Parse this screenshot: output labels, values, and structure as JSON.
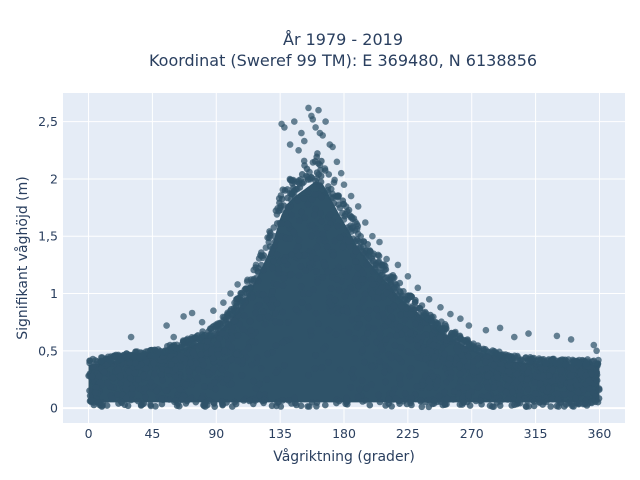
{
  "chart_data": {
    "type": "scatter",
    "title_line1": "År 1979 - 2019",
    "title_line2": "Koordinat (Sweref 99 TM): E 369480, N 6138856",
    "xlabel": "Vågriktning (grader)",
    "ylabel": "Signifikant våghöjd (m)",
    "xlim": [
      -18,
      378
    ],
    "ylim": [
      -0.13,
      2.75
    ],
    "x_ticks": [
      0,
      45,
      90,
      135,
      180,
      225,
      270,
      315,
      360
    ],
    "x_tick_labels": [
      "0",
      "45",
      "90",
      "135",
      "180",
      "225",
      "270",
      "315",
      "360"
    ],
    "y_ticks": [
      0,
      0.5,
      1,
      1.5,
      2,
      2.5
    ],
    "y_tick_labels": [
      "0",
      "0,5",
      "1",
      "1,5",
      "2",
      "2,5"
    ],
    "grid": true,
    "marker_color": "#2f5369",
    "plot_background": "#e5ecf6",
    "upper_envelope": {
      "x": [
        0,
        15,
        30,
        45,
        60,
        75,
        90,
        100,
        110,
        120,
        130,
        135,
        140,
        145,
        150,
        155,
        160,
        165,
        170,
        175,
        180,
        185,
        190,
        200,
        210,
        220,
        230,
        240,
        250,
        260,
        270,
        280,
        290,
        300,
        315,
        330,
        345,
        360
      ],
      "y": [
        0.42,
        0.45,
        0.48,
        0.5,
        0.55,
        0.62,
        0.72,
        0.85,
        1.05,
        1.3,
        1.6,
        1.85,
        1.98,
        2.05,
        2.1,
        2.15,
        2.2,
        2.18,
        2.05,
        1.92,
        1.8,
        1.68,
        1.55,
        1.38,
        1.22,
        1.06,
        0.95,
        0.82,
        0.73,
        0.64,
        0.57,
        0.52,
        0.48,
        0.45,
        0.43,
        0.42,
        0.42,
        0.42
      ]
    },
    "outlier_points": {
      "x": [
        136,
        138,
        142,
        145,
        148,
        150,
        152,
        155,
        157,
        158,
        160,
        162,
        163,
        165,
        167,
        170,
        172,
        175,
        178,
        180,
        185,
        190,
        195,
        200,
        205,
        210,
        218,
        225,
        232,
        240,
        248,
        255,
        262,
        268,
        280,
        290,
        300,
        310,
        330,
        340,
        356,
        358,
        30,
        55,
        60,
        67,
        73,
        80,
        88,
        95,
        100,
        105,
        112,
        118,
        125
      ],
      "y": [
        2.48,
        2.45,
        2.3,
        2.5,
        2.25,
        2.4,
        2.33,
        2.62,
        2.55,
        2.52,
        2.45,
        2.6,
        2.4,
        2.38,
        2.5,
        2.3,
        2.28,
        2.15,
        2.05,
        1.95,
        1.85,
        1.76,
        1.62,
        1.5,
        1.45,
        1.3,
        1.25,
        1.15,
        1.05,
        0.95,
        0.88,
        0.82,
        0.78,
        0.72,
        0.68,
        0.7,
        0.62,
        0.65,
        0.63,
        0.6,
        0.55,
        0.5,
        0.62,
        0.72,
        0.62,
        0.8,
        0.83,
        0.75,
        0.85,
        0.92,
        1.0,
        1.08,
        1.12,
        1.25,
        1.4
      ]
    }
  }
}
